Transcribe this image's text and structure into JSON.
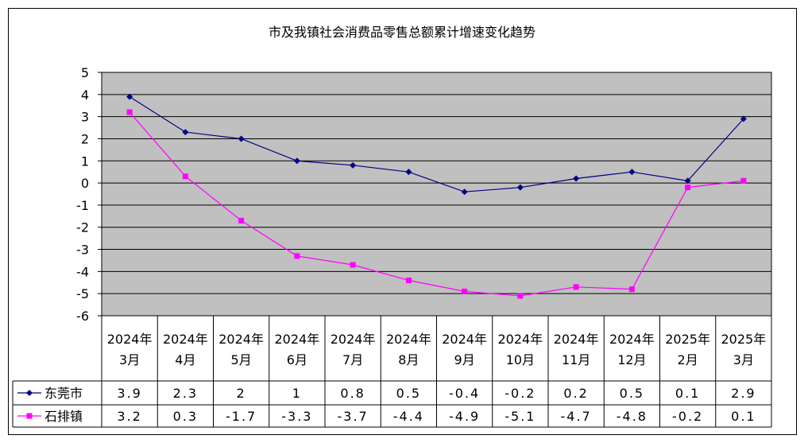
{
  "chart_data": {
    "type": "line",
    "title": "市及我镇社会消费品零售总额累计增速变化趋势",
    "categories": [
      [
        "2024年",
        "3月"
      ],
      [
        "2024年",
        "4月"
      ],
      [
        "2024年",
        "5月"
      ],
      [
        "2024年",
        "6月"
      ],
      [
        "2024年",
        "7月"
      ],
      [
        "2024年",
        "8月"
      ],
      [
        "2024年",
        "9月"
      ],
      [
        "2024年",
        "10月"
      ],
      [
        "2024年",
        "11月"
      ],
      [
        "2024年",
        "12月"
      ],
      [
        "2025年",
        "2月"
      ],
      [
        "2025年",
        "3月"
      ]
    ],
    "series": [
      {
        "name": "东莞市",
        "color": "#000080",
        "marker": "diamond",
        "values": [
          3.9,
          2.3,
          2,
          1,
          0.8,
          0.5,
          -0.4,
          -0.2,
          0.2,
          0.5,
          0.1,
          2.9
        ],
        "labels": [
          "3.9",
          "2.3",
          "2",
          "1",
          "0.8",
          "0.5",
          "-0.4",
          "-0.2",
          "0.2",
          "0.5",
          "0.1",
          "2.9"
        ]
      },
      {
        "name": "石排镇",
        "color": "#ff00ff",
        "marker": "square",
        "values": [
          3.2,
          0.3,
          -1.7,
          -3.3,
          -3.7,
          -4.4,
          -4.9,
          -5.1,
          -4.7,
          -4.8,
          -0.2,
          0.1
        ],
        "labels": [
          "3.2",
          "0.3",
          "-1.7",
          "-3.3",
          "-3.7",
          "-4.4",
          "-4.9",
          "-5.1",
          "-4.7",
          "-4.8",
          "-0.2",
          "0.1"
        ]
      }
    ],
    "ylim": [
      -6,
      5
    ],
    "yticks": [
      "5",
      "4",
      "3",
      "2",
      "1",
      "0",
      "-1",
      "-2",
      "-3",
      "-4",
      "-5",
      "-6"
    ],
    "grid": true,
    "plot_background": "#c0c0c0",
    "legend": "data-table"
  }
}
